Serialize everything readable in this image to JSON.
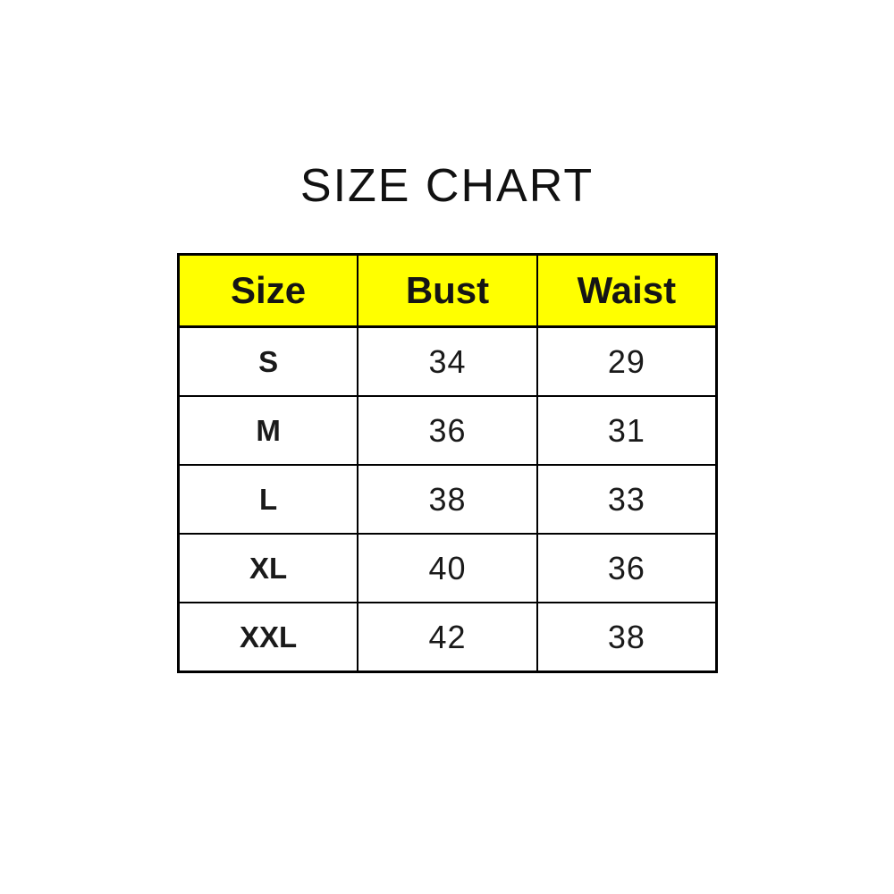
{
  "title": "SIZE CHART",
  "colors": {
    "header_background": "#ffff00",
    "border": "#000000",
    "text": "#1a1a1a",
    "page_background": "#ffffff"
  },
  "table": {
    "columns": [
      "Size",
      "Bust",
      "Waist"
    ],
    "rows": [
      {
        "size": "S",
        "bust": "34",
        "waist": "29"
      },
      {
        "size": "M",
        "bust": "36",
        "waist": "31"
      },
      {
        "size": "L",
        "bust": "38",
        "waist": "33"
      },
      {
        "size": "XL",
        "bust": "40",
        "waist": "36"
      },
      {
        "size": "XXL",
        "bust": "42",
        "waist": "38"
      }
    ]
  },
  "chart_data": {
    "type": "table",
    "title": "SIZE CHART",
    "columns": [
      "Size",
      "Bust",
      "Waist"
    ],
    "rows": [
      [
        "S",
        34,
        29
      ],
      [
        "M",
        36,
        31
      ],
      [
        "L",
        38,
        33
      ],
      [
        "XL",
        40,
        36
      ],
      [
        "XXL",
        42,
        38
      ]
    ],
    "layout_hints": {
      "header_background": "#ffff00",
      "grid": true,
      "alignment": "center"
    }
  }
}
